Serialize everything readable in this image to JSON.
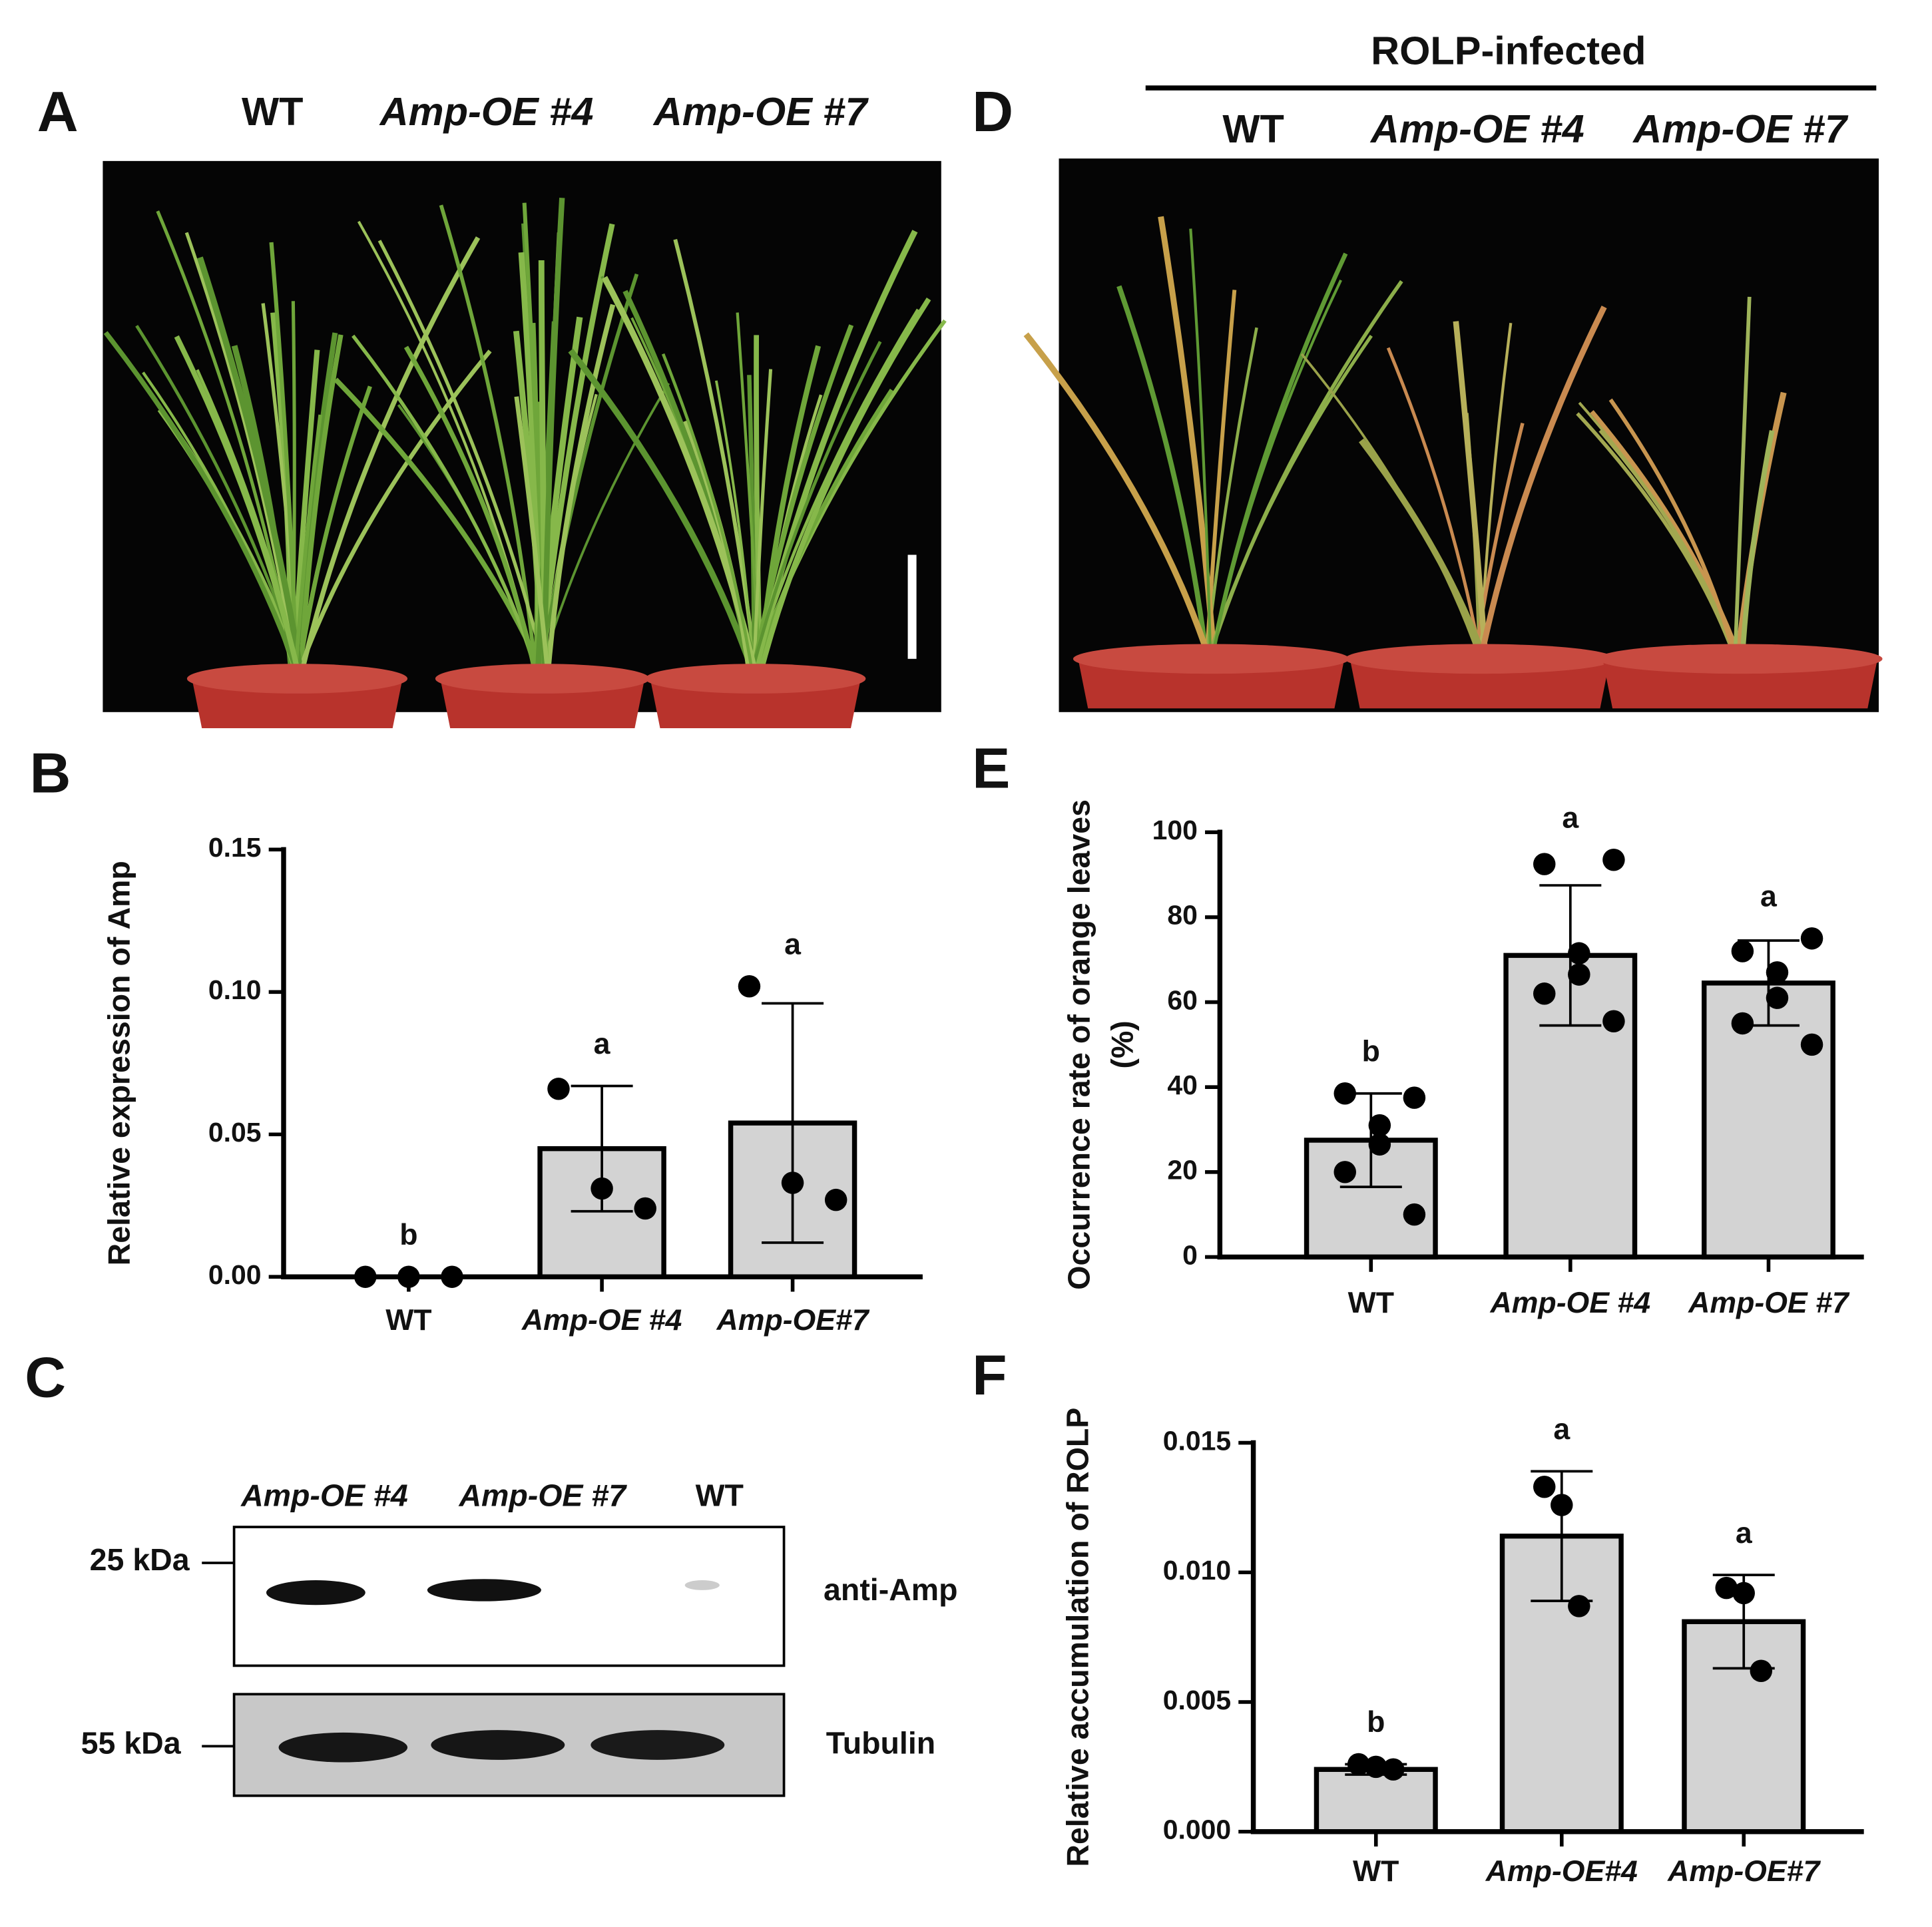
{
  "figure": {
    "panel_labels": [
      "A",
      "B",
      "C",
      "D",
      "E",
      "F"
    ]
  },
  "photo_a": {
    "labels": [
      "WT",
      "Amp-OE #4",
      "Amp-OE #7"
    ]
  },
  "photo_d": {
    "title": "ROLP-infected",
    "labels": [
      "WT",
      "Amp-OE #4",
      "Amp-OE #7"
    ]
  },
  "blot": {
    "lanes": [
      "Amp-OE #4",
      "Amp-OE #7",
      "WT"
    ],
    "markers": [
      "25 kDa",
      "55 kDa"
    ],
    "rows": [
      "anti-Amp",
      "Tubulin"
    ]
  },
  "chart_data": [
    {
      "type": "bar",
      "y_label": [
        "Relative expression of Amp"
      ],
      "categories": [
        "WT",
        "Amp-OE #4",
        "Amp-OE#7"
      ],
      "italic_categories": [
        false,
        true,
        true
      ],
      "values": [
        0,
        0.045,
        0.054
      ],
      "errors": [
        0,
        0.022,
        0.042
      ],
      "points": [
        [
          0,
          0,
          0
        ],
        [
          0.066,
          0.031,
          0.024
        ],
        [
          0.102,
          0.033,
          0.027
        ]
      ],
      "letters": [
        "b",
        "a",
        "a"
      ],
      "color": "#d3d3d3",
      "grid": false,
      "ylim": [
        0,
        0.15
      ],
      "yticks": [
        {
          "value": 0,
          "label": "0.00"
        },
        {
          "value": 0.05,
          "label": "0.05"
        },
        {
          "value": 0.1,
          "label": "0.10"
        },
        {
          "value": 0.15,
          "label": "0.15"
        }
      ]
    },
    {
      "type": "bar",
      "y_label": [
        "Occurrence rate of orange leaves",
        "(%)"
      ],
      "categories": [
        "WT",
        "Amp-OE #4",
        "Amp-OE #7"
      ],
      "italic_categories": [
        false,
        true,
        true
      ],
      "values": [
        27.5,
        71,
        64.5
      ],
      "errors": [
        11,
        16.5,
        10
      ],
      "points": [
        [
          37.5,
          38.5,
          31,
          26.5,
          20,
          10
        ],
        [
          93.5,
          92.5,
          71.5,
          66.5,
          62,
          55.5
        ],
        [
          75,
          72,
          67,
          61,
          55,
          50
        ]
      ],
      "letters": [
        "b",
        "a",
        "a"
      ],
      "color": "#d3d3d3",
      "grid": false,
      "ylim": [
        0,
        100
      ],
      "yticks": [
        0,
        20,
        40,
        60,
        80,
        100
      ]
    },
    {
      "type": "bar",
      "y_label": [
        "Relative accumulation of ROLP"
      ],
      "categories": [
        "WT",
        "Amp-OE#4",
        "Amp-OE#7"
      ],
      "italic_categories": [
        false,
        true,
        true
      ],
      "values": [
        0.0024,
        0.0114,
        0.0081
      ],
      "errors": [
        0.0002,
        0.0025,
        0.0018
      ],
      "points": [
        [
          0.0026,
          0.0025,
          0.0024
        ],
        [
          0.0133,
          0.0126,
          0.0087
        ],
        [
          0.0094,
          0.0092,
          0.0062
        ]
      ],
      "letters": [
        "b",
        "a",
        "a"
      ],
      "color": "#d3d3d3",
      "grid": false,
      "ylim": [
        0,
        0.015
      ],
      "yticks": [
        {
          "value": 0,
          "label": "0.000"
        },
        {
          "value": 0.005,
          "label": "0.005"
        },
        {
          "value": 0.01,
          "label": "0.010"
        },
        {
          "value": 0.015,
          "label": "0.015"
        }
      ]
    }
  ]
}
